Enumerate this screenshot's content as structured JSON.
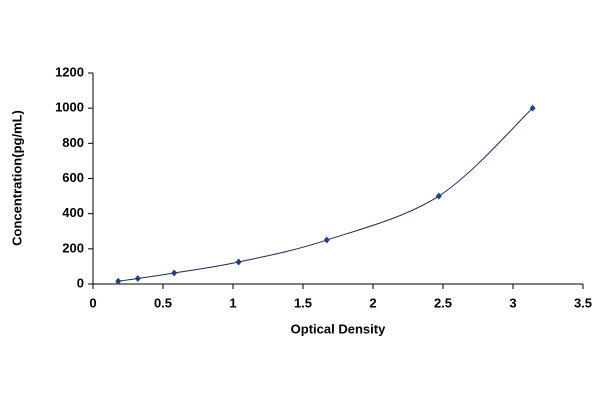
{
  "chart_data": {
    "type": "scatter",
    "smooth_line": true,
    "x_label": "Optical Density",
    "y_label": "Concentration(pg/mL)",
    "x": [
      0.18,
      0.32,
      0.58,
      1.04,
      1.67,
      2.47,
      3.14
    ],
    "values": [
      15.6,
      31.2,
      62.5,
      125,
      250,
      500,
      1000
    ],
    "color": "#1f3f8f",
    "line_color": "#1a2a5a",
    "xlim": [
      0,
      3.5
    ],
    "xticks": [
      0,
      0.5,
      1,
      1.5,
      2,
      2.5,
      3,
      3.5
    ],
    "ylim": [
      0,
      1200
    ],
    "yticks": [
      0,
      200,
      400,
      600,
      800,
      1000,
      1200
    ],
    "grid": false
  }
}
